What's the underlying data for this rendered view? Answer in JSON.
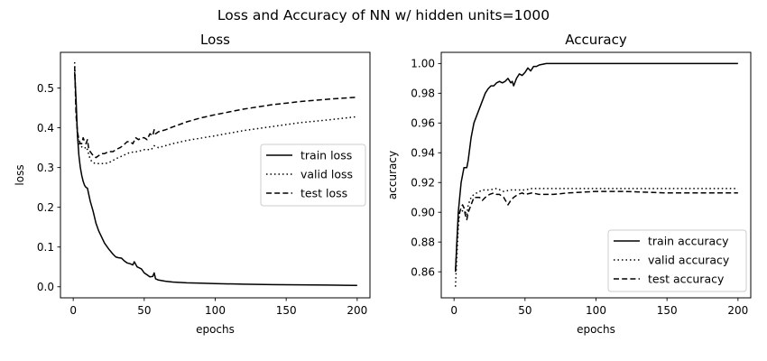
{
  "figure": {
    "suptitle": "Loss and Accuracy of NN w/ hidden units=1000"
  },
  "chart_data": [
    {
      "type": "line",
      "title": "Loss",
      "xlabel": "epochs",
      "ylabel": "loss",
      "xlim": [
        -9,
        209
      ],
      "ylim": [
        -0.0278,
        0.5898
      ],
      "xticks": [
        0,
        50,
        100,
        150,
        200
      ],
      "yticks": [
        0.0,
        0.1,
        0.2,
        0.3,
        0.4,
        0.5
      ],
      "xtick_labels": [
        "0",
        "50",
        "100",
        "150",
        "200"
      ],
      "ytick_labels": [
        "0.0",
        "0.1",
        "0.2",
        "0.3",
        "0.4",
        "0.5"
      ],
      "grid": false,
      "legend_position": "center-right",
      "series": [
        {
          "name": "train loss",
          "style": "solid",
          "x": [
            1,
            2,
            3,
            4,
            5,
            6,
            7,
            8,
            9,
            10,
            12,
            14,
            16,
            18,
            20,
            22,
            25,
            28,
            30,
            32,
            34,
            36,
            38,
            40,
            42,
            43,
            45,
            48,
            50,
            52,
            54,
            56,
            57,
            58,
            60,
            65,
            70,
            80,
            90,
            100,
            120,
            140,
            160,
            180,
            200
          ],
          "y": [
            0.54,
            0.47,
            0.38,
            0.33,
            0.3,
            0.28,
            0.265,
            0.255,
            0.25,
            0.248,
            0.215,
            0.19,
            0.16,
            0.14,
            0.125,
            0.11,
            0.095,
            0.082,
            0.075,
            0.073,
            0.072,
            0.065,
            0.06,
            0.058,
            0.055,
            0.063,
            0.05,
            0.045,
            0.035,
            0.03,
            0.025,
            0.026,
            0.035,
            0.02,
            0.017,
            0.014,
            0.012,
            0.01,
            0.009,
            0.008,
            0.0065,
            0.0055,
            0.0048,
            0.0042,
            0.0035
          ]
        },
        {
          "name": "valid loss",
          "style": "dotted",
          "x": [
            1,
            2,
            3,
            4,
            5,
            6,
            7,
            8,
            9,
            10,
            12,
            14,
            16,
            18,
            20,
            22,
            25,
            28,
            30,
            35,
            40,
            45,
            50,
            55,
            57,
            60,
            70,
            80,
            100,
            120,
            140,
            160,
            180,
            200
          ],
          "y": [
            0.565,
            0.45,
            0.38,
            0.36,
            0.355,
            0.352,
            0.35,
            0.348,
            0.352,
            0.345,
            0.32,
            0.312,
            0.31,
            0.31,
            0.31,
            0.31,
            0.312,
            0.318,
            0.322,
            0.33,
            0.338,
            0.34,
            0.345,
            0.345,
            0.355,
            0.35,
            0.36,
            0.368,
            0.38,
            0.393,
            0.403,
            0.413,
            0.42,
            0.428
          ]
        },
        {
          "name": "test loss",
          "style": "dashed",
          "x": [
            1,
            2,
            3,
            4,
            5,
            6,
            7,
            8,
            9,
            10,
            11,
            12,
            14,
            16,
            18,
            20,
            22,
            25,
            28,
            30,
            33,
            35,
            38,
            40,
            42,
            44,
            46,
            48,
            50,
            52,
            54,
            56,
            57,
            58,
            60,
            65,
            70,
            80,
            90,
            100,
            120,
            140,
            160,
            180,
            200
          ],
          "y": [
            0.555,
            0.43,
            0.39,
            0.37,
            0.36,
            0.36,
            0.375,
            0.365,
            0.36,
            0.37,
            0.345,
            0.34,
            0.33,
            0.325,
            0.33,
            0.335,
            0.335,
            0.34,
            0.34,
            0.345,
            0.35,
            0.355,
            0.365,
            0.365,
            0.36,
            0.375,
            0.37,
            0.375,
            0.375,
            0.37,
            0.385,
            0.38,
            0.395,
            0.385,
            0.39,
            0.395,
            0.402,
            0.415,
            0.425,
            0.433,
            0.447,
            0.458,
            0.466,
            0.472,
            0.477
          ]
        }
      ]
    },
    {
      "type": "line",
      "title": "Accuracy",
      "xlabel": "epochs",
      "ylabel": "accuracy",
      "xlim": [
        -9,
        209
      ],
      "ylim": [
        0.8425,
        1.0075
      ],
      "xticks": [
        0,
        50,
        100,
        150,
        200
      ],
      "yticks": [
        0.86,
        0.88,
        0.9,
        0.92,
        0.94,
        0.96,
        0.98,
        1.0
      ],
      "xtick_labels": [
        "0",
        "50",
        "100",
        "150",
        "200"
      ],
      "ytick_labels": [
        "0.86",
        "0.88",
        "0.90",
        "0.92",
        "0.94",
        "0.96",
        "0.98",
        "1.00"
      ],
      "grid": false,
      "legend_position": "lower-right",
      "series": [
        {
          "name": "train accuracy",
          "style": "solid",
          "x": [
            1,
            2,
            3,
            4,
            5,
            6,
            7,
            8,
            9,
            10,
            12,
            14,
            16,
            18,
            20,
            22,
            24,
            26,
            28,
            30,
            32,
            34,
            36,
            38,
            40,
            41,
            42,
            44,
            46,
            48,
            50,
            52,
            54,
            56,
            58,
            60,
            65,
            70,
            80,
            100,
            150,
            200
          ],
          "y": [
            0.86,
            0.88,
            0.9,
            0.91,
            0.92,
            0.925,
            0.93,
            0.93,
            0.93,
            0.935,
            0.95,
            0.96,
            0.965,
            0.97,
            0.975,
            0.98,
            0.983,
            0.985,
            0.985,
            0.987,
            0.988,
            0.987,
            0.988,
            0.99,
            0.987,
            0.988,
            0.985,
            0.99,
            0.993,
            0.992,
            0.994,
            0.997,
            0.995,
            0.998,
            0.998,
            0.999,
            1.0,
            1.0,
            1.0,
            1.0,
            1.0,
            1.0
          ]
        },
        {
          "name": "valid accuracy",
          "style": "dotted",
          "x": [
            1,
            2,
            3,
            4,
            5,
            6,
            7,
            8,
            9,
            10,
            12,
            14,
            16,
            18,
            20,
            25,
            30,
            35,
            40,
            45,
            50,
            55,
            60,
            70,
            80,
            100,
            120,
            150,
            200
          ],
          "y": [
            0.85,
            0.87,
            0.89,
            0.9,
            0.9,
            0.901,
            0.9,
            0.9,
            0.898,
            0.905,
            0.91,
            0.912,
            0.913,
            0.914,
            0.915,
            0.915,
            0.916,
            0.914,
            0.915,
            0.915,
            0.915,
            0.916,
            0.916,
            0.916,
            0.916,
            0.916,
            0.916,
            0.916,
            0.916
          ]
        },
        {
          "name": "test accuracy",
          "style": "dashed",
          "x": [
            1,
            2,
            3,
            4,
            5,
            6,
            7,
            8,
            9,
            10,
            12,
            14,
            16,
            18,
            20,
            22,
            25,
            28,
            30,
            32,
            35,
            38,
            40,
            42,
            45,
            48,
            50,
            55,
            60,
            70,
            80,
            100,
            120,
            150,
            200
          ],
          "y": [
            0.86,
            0.88,
            0.895,
            0.9,
            0.903,
            0.905,
            0.903,
            0.898,
            0.895,
            0.9,
            0.905,
            0.91,
            0.91,
            0.91,
            0.908,
            0.91,
            0.912,
            0.913,
            0.912,
            0.912,
            0.91,
            0.905,
            0.908,
            0.91,
            0.912,
            0.913,
            0.912,
            0.913,
            0.912,
            0.912,
            0.913,
            0.914,
            0.914,
            0.913,
            0.913
          ]
        }
      ]
    }
  ]
}
